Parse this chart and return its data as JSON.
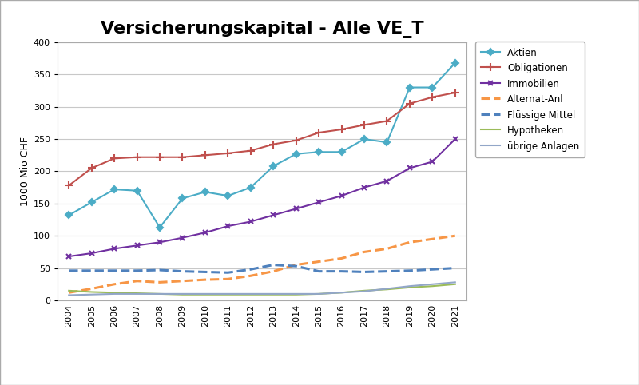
{
  "title": "Versicherungskapital - Alle VE_T",
  "ylabel": "1000 Mio CHF",
  "years": [
    2004,
    2005,
    2006,
    2007,
    2008,
    2009,
    2010,
    2011,
    2012,
    2013,
    2014,
    2015,
    2016,
    2017,
    2018,
    2019,
    2020,
    2021
  ],
  "series": {
    "Aktien": {
      "values": [
        132,
        152,
        172,
        170,
        113,
        158,
        168,
        162,
        175,
        208,
        227,
        230,
        230,
        250,
        245,
        330,
        330,
        368
      ],
      "color": "#4bacc6",
      "linestyle": "-",
      "marker": "D",
      "markersize": 4,
      "linewidth": 1.5
    },
    "Obligationen": {
      "values": [
        178,
        205,
        220,
        222,
        222,
        222,
        225,
        228,
        232,
        242,
        248,
        260,
        265,
        272,
        278,
        305,
        315,
        322
      ],
      "color": "#c0504d",
      "linestyle": "-",
      "marker": "+",
      "markersize": 7,
      "linewidth": 1.5
    },
    "Immobilien": {
      "values": [
        68,
        73,
        80,
        85,
        90,
        97,
        105,
        115,
        122,
        132,
        142,
        152,
        162,
        175,
        185,
        205,
        215,
        250
      ],
      "color": "#7030a0",
      "linestyle": "-",
      "marker": "x",
      "markersize": 5,
      "linewidth": 1.5
    },
    "Alternat-Anl": {
      "values": [
        12,
        18,
        25,
        30,
        28,
        30,
        32,
        33,
        38,
        45,
        55,
        60,
        65,
        75,
        80,
        90,
        95,
        100
      ],
      "color": "#f79646",
      "linestyle": "--",
      "marker": null,
      "markersize": 0,
      "linewidth": 2.2
    },
    "Flüssige Mittel": {
      "values": [
        46,
        46,
        46,
        46,
        47,
        45,
        44,
        43,
        48,
        55,
        53,
        45,
        45,
        44,
        45,
        46,
        48,
        50
      ],
      "color": "#4f81bd",
      "linestyle": "--",
      "marker": null,
      "markersize": 0,
      "linewidth": 2.2
    },
    "Hypotheken": {
      "values": [
        15,
        13,
        12,
        11,
        10,
        9,
        9,
        9,
        9,
        9,
        9,
        10,
        12,
        15,
        17,
        20,
        22,
        25
      ],
      "color": "#9bbb59",
      "linestyle": "-",
      "marker": null,
      "markersize": 0,
      "linewidth": 1.5
    },
    "übrige Anlagen": {
      "values": [
        8,
        9,
        10,
        10,
        10,
        10,
        10,
        10,
        10,
        10,
        10,
        10,
        12,
        14,
        18,
        22,
        25,
        28
      ],
      "color": "#92a6c8",
      "linestyle": "-",
      "marker": null,
      "markersize": 0,
      "linewidth": 1.5
    }
  },
  "ylim": [
    0,
    400
  ],
  "yticks": [
    0,
    50,
    100,
    150,
    200,
    250,
    300,
    350,
    400
  ],
  "background_color": "#ffffff",
  "plot_bg_color": "#ffffff",
  "grid_color": "#c8c8c8",
  "title_fontsize": 16,
  "axis_label_fontsize": 9,
  "legend_fontsize": 8.5,
  "tick_fontsize": 8,
  "outer_border_color": "#aaaaaa"
}
